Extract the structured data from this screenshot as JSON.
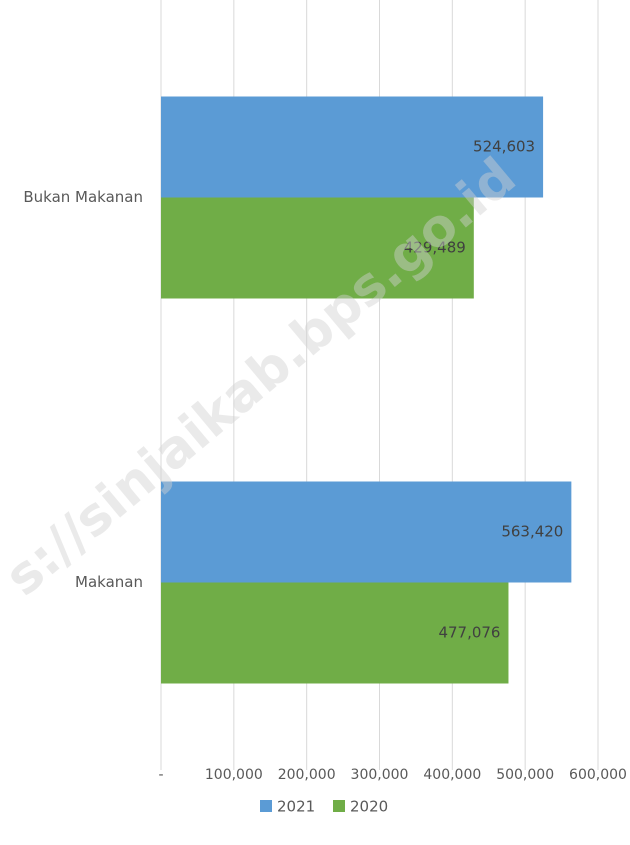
{
  "chart_data": {
    "type": "hbar",
    "categories": [
      "Bukan Makanan",
      "Makanan"
    ],
    "series": [
      {
        "name": "2021",
        "color": "#5b9bd5",
        "values": [
          524603,
          563420
        ],
        "value_labels": [
          "524,603",
          "563,420"
        ]
      },
      {
        "name": "2020",
        "color": "#70ad47",
        "values": [
          429489,
          477076
        ],
        "value_labels": [
          "429,489",
          "477,076"
        ]
      }
    ],
    "xlim": [
      0,
      600000
    ],
    "xticks": [
      {
        "value": 0,
        "label": "-"
      },
      {
        "value": 100000,
        "label": "100,000"
      },
      {
        "value": 200000,
        "label": "200,000"
      },
      {
        "value": 300000,
        "label": "300,000"
      },
      {
        "value": 400000,
        "label": "400,000"
      },
      {
        "value": 500000,
        "label": "500,000"
      },
      {
        "value": 600000,
        "label": "600,000"
      }
    ],
    "grid": true,
    "legend": "bottom",
    "watermark": "s://sinjaikab.bps.go.id"
  }
}
